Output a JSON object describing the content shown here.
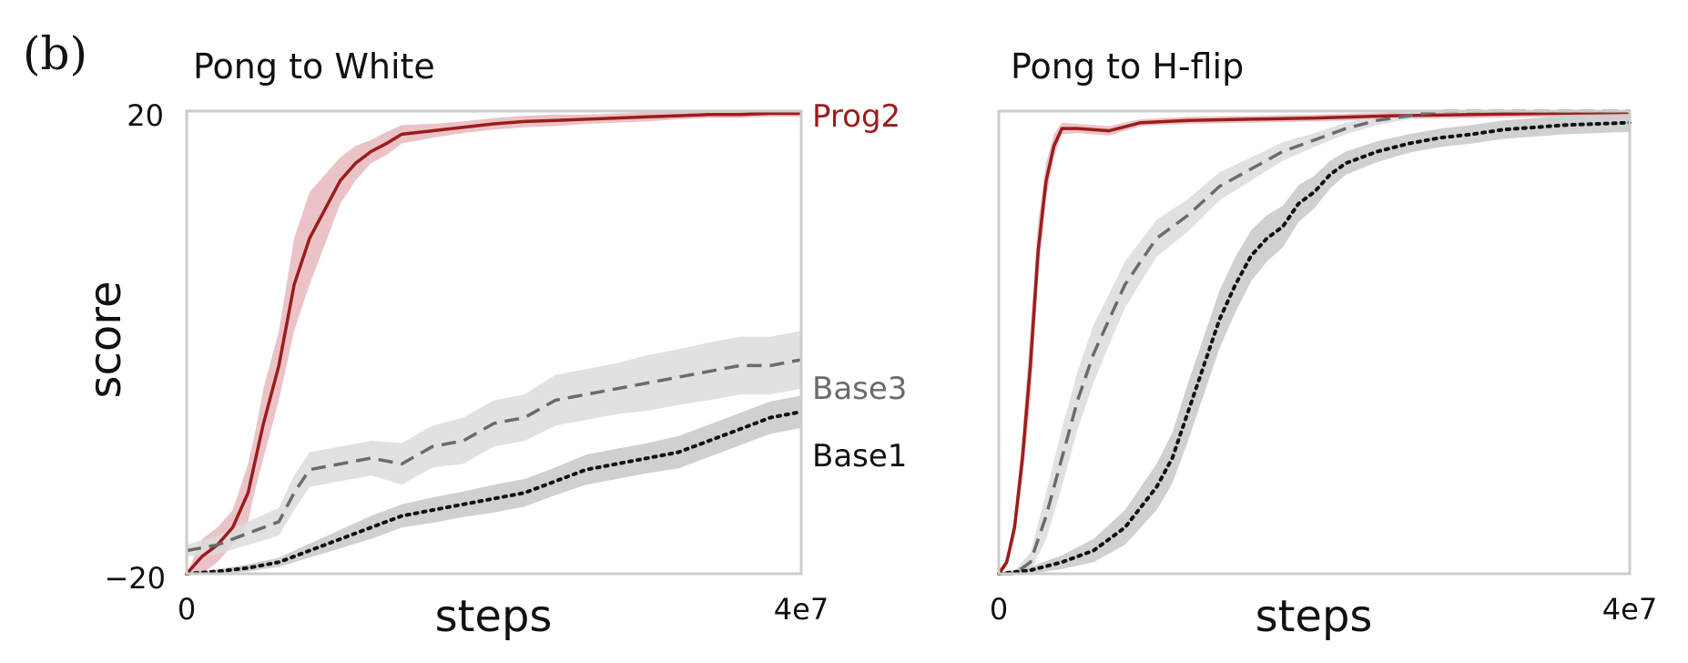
{
  "figure": {
    "panel_label": "(b)",
    "colors": {
      "prog2": "#9b1c1c",
      "prog2_band": "#e7b9bd",
      "base3": "#6b6b6b",
      "base3_band": "#dcdcdc",
      "base1": "#111111",
      "base1_band": "#c8c8c8",
      "axis": "#cccccc",
      "text": "#222222"
    }
  },
  "chart_data": [
    {
      "type": "line",
      "title": "Pong to White",
      "xlabel": "steps",
      "ylabel": "score",
      "x_tick_labels": [
        "0",
        "4e7"
      ],
      "y_tick_labels": [
        "20",
        "−20"
      ],
      "xlim": [
        0,
        40000000
      ],
      "ylim": [
        -20,
        20
      ],
      "grid": false,
      "legend": "inline labels at right end of lines",
      "series": [
        {
          "name": "Prog2",
          "style": "solid",
          "color": "#9b1c1c",
          "x": [
            0,
            1000000,
            2000000,
            3000000,
            4000000,
            4500000,
            5000000,
            6000000,
            7000000,
            8000000,
            9000000,
            10000000,
            11000000,
            12000000,
            13000000,
            14000000,
            16000000,
            18000000,
            20000000,
            22000000,
            24000000,
            26000000,
            28000000,
            30000000,
            32000000,
            34000000,
            36000000,
            38000000,
            40000000
          ],
          "y": [
            -20,
            -18.5,
            -17.5,
            -16,
            -13,
            -10,
            -7,
            -2,
            5,
            9,
            11.5,
            14,
            15.5,
            16.5,
            17.2,
            18,
            18.3,
            18.6,
            18.9,
            19.1,
            19.2,
            19.3,
            19.4,
            19.5,
            19.6,
            19.7,
            19.7,
            19.8,
            19.8
          ],
          "band": [
            0,
            1.5,
            1.5,
            1.5,
            2.5,
            2.5,
            3,
            3,
            4,
            4,
            3,
            2,
            1.5,
            1,
            1,
            0.8,
            0.6,
            0.5,
            0.5,
            0.5,
            0.5,
            0.4,
            0.4,
            0.4,
            0.3,
            0.3,
            0.3,
            0.3,
            0.3
          ]
        },
        {
          "name": "Base3",
          "style": "dashed",
          "color": "#6b6b6b",
          "x": [
            0,
            2000000,
            4000000,
            6000000,
            7000000,
            8000000,
            10000000,
            12000000,
            14000000,
            16000000,
            18000000,
            20000000,
            22000000,
            24000000,
            26000000,
            28000000,
            30000000,
            32000000,
            34000000,
            36000000,
            38000000,
            40000000
          ],
          "y": [
            -18,
            -17.5,
            -16.5,
            -15.5,
            -13,
            -11,
            -10.5,
            -10,
            -10.5,
            -9,
            -8.5,
            -7,
            -6.5,
            -5,
            -4.5,
            -4,
            -3.5,
            -3,
            -2.5,
            -2,
            -2,
            -1.5
          ],
          "band": [
            0.5,
            0.8,
            1,
            1.2,
            1.5,
            1.5,
            1.5,
            1.5,
            1.8,
            1.8,
            2,
            2,
            2,
            2.2,
            2.2,
            2.2,
            2.4,
            2.4,
            2.5,
            2.5,
            2.5,
            2.5
          ]
        },
        {
          "name": "Base1",
          "style": "dotted",
          "color": "#111111",
          "x": [
            0,
            2000000,
            4000000,
            6000000,
            8000000,
            10000000,
            12000000,
            14000000,
            16000000,
            18000000,
            20000000,
            22000000,
            24000000,
            26000000,
            28000000,
            30000000,
            32000000,
            34000000,
            36000000,
            38000000,
            40000000
          ],
          "y": [
            -20,
            -19.8,
            -19.5,
            -19,
            -18,
            -17,
            -16,
            -15,
            -14.5,
            -14,
            -13.5,
            -13,
            -12,
            -11,
            -10.5,
            -10,
            -9.5,
            -8.5,
            -7.5,
            -6.5,
            -6
          ],
          "band": [
            0.1,
            0.2,
            0.3,
            0.4,
            0.6,
            0.8,
            1,
            1,
            1.1,
            1.1,
            1.2,
            1.2,
            1.2,
            1.3,
            1.3,
            1.3,
            1.4,
            1.4,
            1.4,
            1.4,
            1.4
          ]
        }
      ]
    },
    {
      "type": "line",
      "title": "Pong to H-flip",
      "xlabel": "steps",
      "ylabel": "",
      "x_tick_labels": [
        "0",
        "4e7"
      ],
      "y_tick_labels": [],
      "xlim": [
        0,
        40000000
      ],
      "ylim": [
        -20,
        20
      ],
      "grid": false,
      "legend": "none",
      "series": [
        {
          "name": "",
          "style": "solid",
          "color": "#9b1c1c",
          "x": [
            0,
            500000,
            1000000,
            1500000,
            2000000,
            2500000,
            3000000,
            3500000,
            4000000,
            5000000,
            7000000,
            9000000,
            12000000,
            16000000,
            20000000,
            25000000,
            30000000,
            35000000,
            40000000
          ],
          "y": [
            -20,
            -19,
            -16,
            -10,
            -2,
            8,
            14,
            17,
            18.5,
            18.5,
            18.3,
            19.0,
            19.2,
            19.3,
            19.4,
            19.6,
            19.7,
            19.8,
            19.9
          ],
          "band": [
            0,
            0.5,
            1,
            2,
            3,
            2.5,
            1.5,
            1,
            0.5,
            0.4,
            0.4,
            0.3,
            0.3,
            0.3,
            0.3,
            0.3,
            0.3,
            0.3,
            0.3
          ]
        },
        {
          "name": "",
          "style": "dashed",
          "color": "#6b6b6b",
          "x": [
            0,
            1000000,
            2000000,
            3000000,
            4000000,
            5000000,
            6000000,
            7000000,
            8000000,
            9000000,
            10000000,
            12000000,
            14000000,
            16000000,
            18000000,
            20000000,
            22000000,
            24000000,
            26000000,
            28000000,
            30000000,
            35000000,
            40000000
          ],
          "y": [
            -20,
            -20,
            -19,
            -15,
            -10,
            -5,
            -1,
            2,
            5,
            7,
            9,
            11,
            13.5,
            15,
            16.5,
            17.5,
            18.5,
            19.2,
            19.6,
            20,
            20,
            20,
            20
          ],
          "band": [
            0,
            0.3,
            0.8,
            2,
            2.5,
            2.5,
            2.5,
            2.2,
            2,
            1.8,
            1.6,
            1.4,
            1.2,
            1.0,
            0.8,
            0.6,
            0.5,
            0.4,
            0.3,
            0.2,
            0.2,
            0.2,
            0.2
          ]
        },
        {
          "name": "",
          "style": "dotted",
          "color": "#111111",
          "x": [
            0,
            2000000,
            4000000,
            6000000,
            8000000,
            10000000,
            11000000,
            12000000,
            13000000,
            14000000,
            15000000,
            16000000,
            17000000,
            18000000,
            19000000,
            20000000,
            21000000,
            22000000,
            24000000,
            26000000,
            28000000,
            30000000,
            32000000,
            34000000,
            36000000,
            38000000,
            40000000
          ],
          "y": [
            -20,
            -19.7,
            -19,
            -18,
            -16,
            -12.5,
            -10,
            -6,
            -2,
            2,
            5,
            7.5,
            9,
            10,
            12,
            13,
            14.5,
            15.5,
            16.5,
            17.2,
            17.7,
            18.0,
            18.4,
            18.6,
            18.8,
            18.9,
            19.0
          ],
          "band": [
            0.1,
            0.3,
            0.6,
            1,
            1.5,
            2,
            2.2,
            2.5,
            2.5,
            2.5,
            2.4,
            2.2,
            2.0,
            1.8,
            1.6,
            1.4,
            1.2,
            1.0,
            0.9,
            0.8,
            0.8,
            0.8,
            0.8,
            0.8,
            0.8,
            0.8,
            0.8
          ]
        }
      ]
    }
  ]
}
